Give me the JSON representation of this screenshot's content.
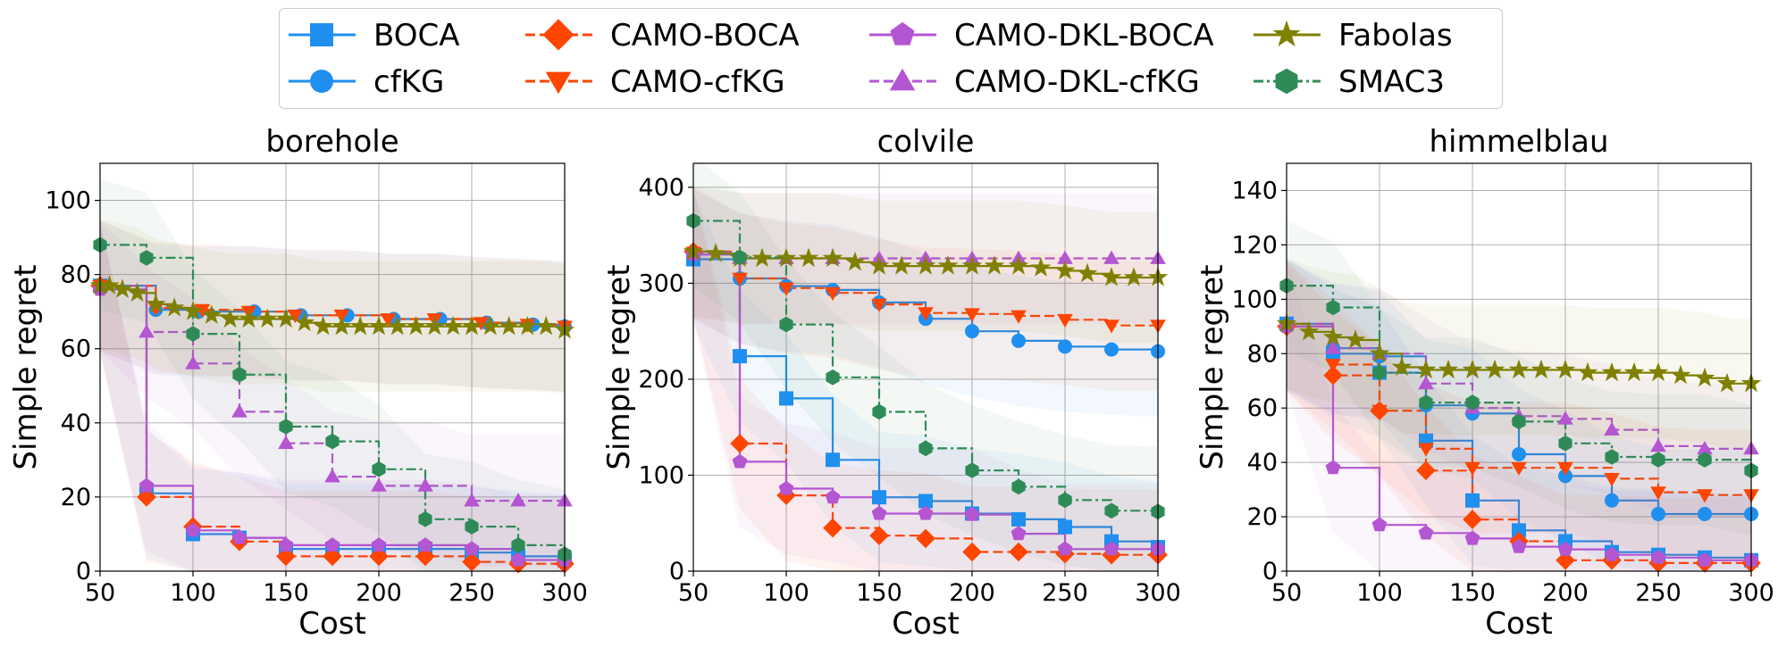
{
  "legend": {
    "entries": [
      {
        "name": "BOCA",
        "color": "#1f8ff0",
        "dash": "solid",
        "marker": "square"
      },
      {
        "name": "cfKG",
        "color": "#1f8ff0",
        "dash": "solid",
        "marker": "circle"
      },
      {
        "name": "CAMO-BOCA",
        "color": "#ff4500",
        "dash": "dashed",
        "marker": "diamond"
      },
      {
        "name": "CAMO-cfKG",
        "color": "#ff4500",
        "dash": "dashed",
        "marker": "triangle-down"
      },
      {
        "name": "CAMO-DKL-BOCA",
        "color": "#b455d2",
        "dash": "solid",
        "marker": "pentagon"
      },
      {
        "name": "CAMO-DKL-cfKG",
        "color": "#b455d2",
        "dash": "dashed",
        "marker": "triangle-up"
      },
      {
        "name": "Fabolas",
        "color": "#808000",
        "dash": "solid",
        "marker": "star"
      },
      {
        "name": "SMAC3",
        "color": "#2e8b57",
        "dash": "dashdot",
        "marker": "hexagon"
      }
    ]
  },
  "chart_data": [
    {
      "type": "line",
      "title": "borehole",
      "xlabel": "Cost",
      "ylabel": "Simple regret",
      "xlim": [
        50,
        300
      ],
      "ylim": [
        0,
        110
      ],
      "xticks": [
        50,
        100,
        150,
        200,
        250,
        300
      ],
      "yticks": [
        0,
        20,
        40,
        60,
        80,
        100
      ],
      "grid": true,
      "series": [
        {
          "name": "BOCA",
          "x": [
            50,
            75,
            100,
            125,
            150,
            175,
            200,
            225,
            250,
            275,
            300
          ],
          "y": [
            77,
            21,
            10,
            9,
            6,
            6,
            6,
            6,
            5,
            4,
            3
          ]
        },
        {
          "name": "cfKG",
          "x": [
            50,
            80,
            103,
            133,
            158,
            183,
            208,
            233,
            258,
            283,
            300
          ],
          "y": [
            77,
            70.5,
            70,
            70,
            69,
            69,
            68,
            68,
            67,
            66.5,
            66
          ]
        },
        {
          "name": "CAMO-BOCA",
          "x": [
            50,
            75,
            100,
            125,
            150,
            175,
            200,
            225,
            250,
            275,
            300
          ],
          "y": [
            77,
            20,
            12,
            8,
            4,
            4,
            4,
            4,
            2.5,
            2,
            2
          ]
        },
        {
          "name": "CAMO-cfKG",
          "x": [
            50,
            80,
            105,
            130,
            155,
            180,
            205,
            230,
            255,
            280,
            300
          ],
          "y": [
            77,
            71,
            70.5,
            70,
            69,
            69,
            68,
            68,
            67,
            66.5,
            66
          ]
        },
        {
          "name": "CAMO-DKL-BOCA",
          "x": [
            50,
            75,
            100,
            125,
            150,
            175,
            200,
            225,
            250,
            275,
            300
          ],
          "y": [
            76,
            23,
            11,
            9,
            7,
            7,
            7,
            7,
            6,
            3,
            3
          ]
        },
        {
          "name": "CAMO-DKL-cfKG",
          "x": [
            50,
            75,
            100,
            125,
            150,
            175,
            200,
            225,
            250,
            275,
            300
          ],
          "y": [
            77,
            64.5,
            56,
            43,
            34.5,
            25.5,
            23,
            23,
            19,
            19,
            19
          ]
        },
        {
          "name": "Fabolas",
          "x": [
            50,
            55,
            62,
            70,
            80,
            90,
            100,
            110,
            120,
            130,
            140,
            150,
            160,
            170,
            180,
            190,
            200,
            210,
            220,
            230,
            240,
            250,
            260,
            270,
            280,
            290,
            300
          ],
          "y": [
            77,
            77,
            76,
            75,
            72,
            71,
            70,
            69,
            68,
            68,
            68,
            68,
            67,
            66,
            66,
            66,
            66,
            66,
            66,
            66,
            66,
            66,
            66,
            66,
            66,
            66,
            65
          ]
        },
        {
          "name": "SMAC3",
          "x": [
            50,
            75,
            100,
            125,
            150,
            175,
            200,
            225,
            250,
            275,
            300
          ],
          "y": [
            88,
            84.5,
            64,
            53,
            39,
            35,
            27.5,
            14,
            12,
            7,
            4.5
          ]
        }
      ]
    },
    {
      "type": "line",
      "title": "colvile",
      "xlabel": "Cost",
      "ylabel": "Simple regret",
      "xlim": [
        50,
        300
      ],
      "ylim": [
        0,
        425
      ],
      "xticks": [
        50,
        100,
        150,
        200,
        250,
        300
      ],
      "yticks": [
        0,
        100,
        200,
        300,
        400
      ],
      "grid": true,
      "series": [
        {
          "name": "BOCA",
          "x": [
            50,
            75,
            100,
            125,
            150,
            175,
            200,
            225,
            250,
            275,
            300
          ],
          "y": [
            325,
            224,
            180,
            116,
            77,
            73,
            60,
            54,
            46,
            31,
            25
          ]
        },
        {
          "name": "cfKG",
          "x": [
            50,
            75,
            100,
            125,
            150,
            175,
            200,
            225,
            250,
            275,
            300
          ],
          "y": [
            330,
            305,
            297,
            293,
            280,
            263,
            250,
            240,
            234,
            231,
            229
          ]
        },
        {
          "name": "CAMO-BOCA",
          "x": [
            50,
            75,
            100,
            125,
            150,
            175,
            200,
            225,
            250,
            275,
            300
          ],
          "y": [
            333,
            133,
            79,
            45,
            37,
            34,
            20,
            20,
            18,
            17,
            17
          ]
        },
        {
          "name": "CAMO-cfKG",
          "x": [
            50,
            75,
            100,
            125,
            150,
            175,
            200,
            225,
            250,
            275,
            300
          ],
          "y": [
            332,
            305,
            295,
            290,
            278,
            269,
            268,
            266,
            262,
            256,
            256
          ]
        },
        {
          "name": "CAMO-DKL-BOCA",
          "x": [
            50,
            75,
            100,
            125,
            150,
            175,
            200,
            225,
            250,
            275,
            300
          ],
          "y": [
            330,
            114,
            86,
            77,
            60,
            60,
            59,
            39,
            23,
            23,
            23
          ]
        },
        {
          "name": "CAMO-DKL-cfKG",
          "x": [
            50,
            75,
            100,
            125,
            150,
            175,
            200,
            225,
            250,
            275,
            300
          ],
          "y": [
            332,
            326,
            326,
            326,
            326,
            326,
            326,
            326,
            326,
            326,
            326
          ]
        },
        {
          "name": "Fabolas",
          "x": [
            50,
            62,
            75,
            87,
            100,
            112,
            125,
            137,
            150,
            162,
            175,
            187,
            200,
            212,
            225,
            237,
            250,
            262,
            275,
            287,
            300
          ],
          "y": [
            333,
            331,
            326,
            326,
            326,
            326,
            326,
            322,
            318,
            318,
            318,
            318,
            318,
            318,
            318,
            316,
            313,
            310,
            306,
            306,
            306
          ]
        },
        {
          "name": "SMAC3",
          "x": [
            50,
            75,
            100,
            125,
            150,
            175,
            200,
            225,
            250,
            275,
            300
          ],
          "y": [
            365,
            327,
            257,
            202,
            166,
            128,
            105,
            88,
            74,
            63,
            62
          ]
        }
      ]
    },
    {
      "type": "line",
      "title": "himmelblau",
      "xlabel": "Cost",
      "ylabel": "Simple regret",
      "xlim": [
        50,
        300
      ],
      "ylim": [
        0,
        150
      ],
      "xticks": [
        50,
        100,
        150,
        200,
        250,
        300
      ],
      "yticks": [
        0,
        20,
        40,
        60,
        80,
        100,
        120,
        140
      ],
      "grid": true,
      "series": [
        {
          "name": "BOCA",
          "x": [
            50,
            75,
            100,
            125,
            150,
            175,
            200,
            225,
            250,
            275,
            300
          ],
          "y": [
            91,
            80,
            73,
            48,
            26,
            15,
            11,
            7,
            6,
            5,
            4
          ]
        },
        {
          "name": "cfKG",
          "x": [
            50,
            75,
            100,
            125,
            150,
            175,
            200,
            225,
            250,
            275,
            300
          ],
          "y": [
            90,
            82,
            79,
            61,
            58,
            43,
            35,
            26,
            21,
            21,
            21
          ]
        },
        {
          "name": "CAMO-BOCA",
          "x": [
            50,
            75,
            100,
            125,
            150,
            175,
            200,
            225,
            250,
            275,
            300
          ],
          "y": [
            90,
            72,
            59,
            37,
            19,
            11,
            4,
            4,
            3,
            3,
            3
          ]
        },
        {
          "name": "CAMO-cfKG",
          "x": [
            50,
            75,
            100,
            125,
            150,
            175,
            200,
            225,
            250,
            275,
            300
          ],
          "y": [
            90,
            76,
            59,
            45,
            38,
            38,
            38,
            34,
            29,
            28,
            28
          ]
        },
        {
          "name": "CAMO-DKL-BOCA",
          "x": [
            50,
            75,
            100,
            125,
            150,
            175,
            200,
            225,
            250,
            275,
            300
          ],
          "y": [
            90,
            38,
            17,
            14,
            12,
            9,
            8,
            6,
            5,
            4,
            4
          ]
        },
        {
          "name": "CAMO-DKL-cfKG",
          "x": [
            50,
            75,
            100,
            125,
            150,
            175,
            200,
            225,
            250,
            275,
            300
          ],
          "y": [
            91,
            82,
            80,
            69,
            60,
            57,
            56,
            52,
            46,
            45,
            45
          ]
        },
        {
          "name": "Fabolas",
          "x": [
            50,
            62,
            75,
            87,
            100,
            112,
            125,
            137,
            150,
            162,
            175,
            187,
            200,
            212,
            225,
            237,
            250,
            262,
            275,
            287,
            300
          ],
          "y": [
            91,
            88,
            86,
            85,
            80,
            75,
            74,
            74,
            74,
            74,
            74,
            74,
            74,
            73,
            73,
            73,
            73,
            72,
            71,
            69,
            69
          ]
        },
        {
          "name": "SMAC3",
          "x": [
            50,
            75,
            100,
            125,
            150,
            175,
            200,
            225,
            250,
            275,
            300
          ],
          "y": [
            105,
            97,
            73,
            62,
            62,
            55,
            47,
            42,
            41,
            41,
            37
          ]
        }
      ]
    }
  ]
}
